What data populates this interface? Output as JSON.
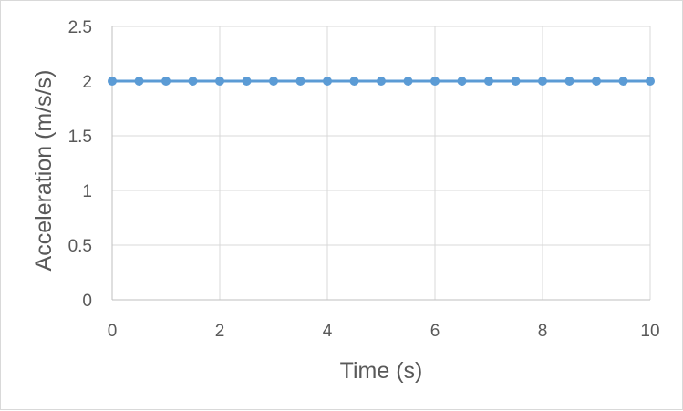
{
  "chart_data": {
    "type": "line",
    "title": "",
    "xlabel": "Time (s)",
    "ylabel": "Acceleration (m/s/s)",
    "xlim": [
      0,
      10
    ],
    "ylim": [
      0,
      2.5
    ],
    "x_ticks": [
      0,
      2,
      4,
      6,
      8,
      10
    ],
    "y_ticks": [
      0,
      0.5,
      1,
      1.5,
      2,
      2.5
    ],
    "y_tick_labels": [
      "0",
      "0.5",
      "1",
      "1.5",
      "2",
      "2.5"
    ],
    "grid": true,
    "legend": "none",
    "series": [
      {
        "color": "#5b9bd5",
        "markers": true,
        "x": [
          0,
          0.5,
          1,
          1.5,
          2,
          2.5,
          3,
          3.5,
          4,
          4.5,
          5,
          5.5,
          6,
          6.5,
          7,
          7.5,
          8,
          8.5,
          9,
          9.5,
          10
        ],
        "y": [
          2,
          2,
          2,
          2,
          2,
          2,
          2,
          2,
          2,
          2,
          2,
          2,
          2,
          2,
          2,
          2,
          2,
          2,
          2,
          2,
          2
        ]
      }
    ],
    "colors": {
      "grid": "#d9d9d9",
      "axis": "#bfbfbf",
      "text": "#595959"
    }
  }
}
